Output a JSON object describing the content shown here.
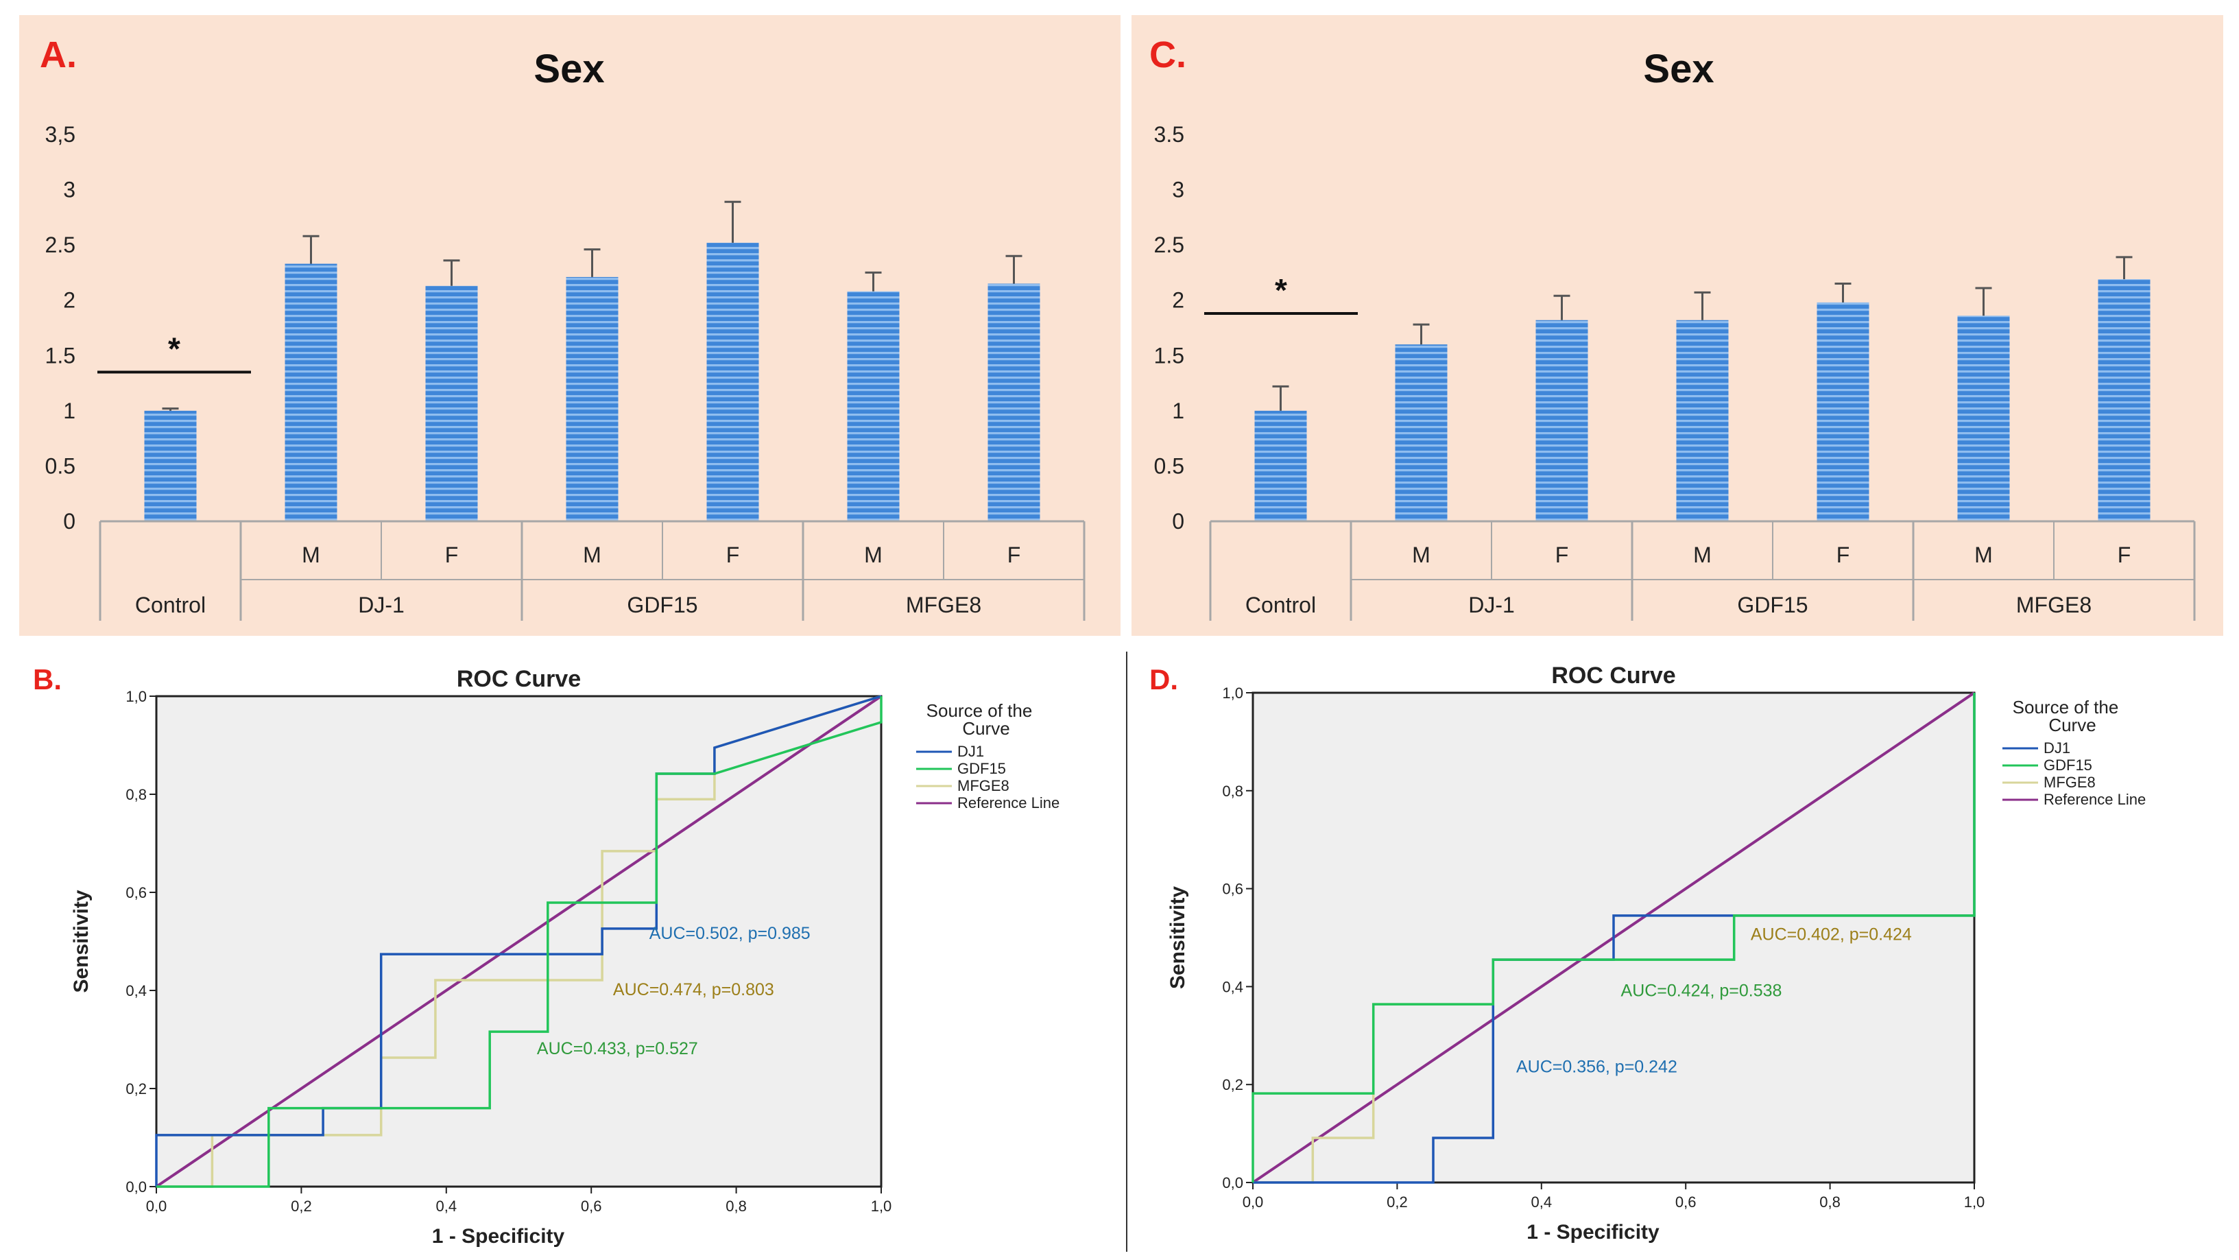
{
  "panels": {
    "a": {
      "label": "A.",
      "label_color": "#e8231c"
    },
    "b": {
      "label": "B.",
      "label_color": "#e8231c"
    },
    "c": {
      "label": "C.",
      "label_color": "#e8231c"
    },
    "d": {
      "label": "D.",
      "label_color": "#e8231c"
    }
  },
  "colors": {
    "panel_bg": "#fbe3d3",
    "bar_fill": "#3f86d8",
    "bar_stripe": "#8fbdef",
    "roc_plot_bg": "#efefef",
    "dj1": "#1f57b5",
    "gdf15": "#22c55a",
    "mfge8": "#d8d69b",
    "reference": "#8b2f8a"
  },
  "chart_data": [
    {
      "id": "A",
      "type": "bar",
      "title": "Sex",
      "ylim": [
        0,
        3.5
      ],
      "y_ticks": [
        "0",
        "0.5",
        "1",
        "1.5",
        "2",
        "2.5",
        "3",
        "3,5"
      ],
      "sub_labels": [
        "",
        "M",
        "F",
        "M",
        "F",
        "M",
        "F"
      ],
      "groups": [
        "Control",
        "DJ-1",
        "GDF15",
        "MFGE8"
      ],
      "values": [
        1.0,
        2.33,
        2.13,
        2.21,
        2.52,
        2.08,
        2.15
      ],
      "errors": [
        0.02,
        0.25,
        0.23,
        0.25,
        0.37,
        0.17,
        0.25
      ],
      "significance": {
        "symbol": "*",
        "level": 1.35
      }
    },
    {
      "id": "C",
      "type": "bar",
      "title": "Sex",
      "ylim": [
        0,
        3.5
      ],
      "y_ticks": [
        "0",
        "0.5",
        "1",
        "1.5",
        "2",
        "2.5",
        "3",
        "3.5"
      ],
      "sub_labels": [
        "",
        "M",
        "F",
        "M",
        "F",
        "M",
        "F"
      ],
      "groups": [
        "Control",
        "DJ-1",
        "GDF15",
        "MFGE8"
      ],
      "values": [
        1.0,
        1.6,
        1.82,
        1.82,
        1.98,
        1.86,
        2.19
      ],
      "errors": [
        0.22,
        0.18,
        0.22,
        0.25,
        0.17,
        0.25,
        0.2
      ],
      "significance": {
        "symbol": "*",
        "level": 1.88
      }
    },
    {
      "id": "B",
      "type": "line",
      "title": "ROC Curve",
      "xlabel": "1 - Specificity",
      "ylabel": "Sensitivity",
      "xlim": [
        0,
        1
      ],
      "ylim": [
        0,
        1
      ],
      "ticks": [
        "0,0",
        "0,2",
        "0,4",
        "0,6",
        "0,8",
        "1,0"
      ],
      "legend_title": "Source of the Curve",
      "series": [
        {
          "name": "DJ1",
          "color_key": "dj1",
          "auc_text": "AUC=0.502, p=0.985",
          "auc_at": [
            0.68,
            0.505
          ],
          "points": [
            [
              0,
              0
            ],
            [
              0,
              0.105
            ],
            [
              0.23,
              0.105
            ],
            [
              0.23,
              0.16
            ],
            [
              0.31,
              0.16
            ],
            [
              0.31,
              0.265
            ],
            [
              0.31,
              0.474
            ],
            [
              0.615,
              0.474
            ],
            [
              0.615,
              0.526
            ],
            [
              0.69,
              0.526
            ],
            [
              0.69,
              0.684
            ],
            [
              0.69,
              0.842
            ],
            [
              0.77,
              0.842
            ],
            [
              0.77,
              0.895
            ],
            [
              1,
              1
            ]
          ]
        },
        {
          "name": "GDF15",
          "color_key": "gdf15",
          "auc_text": "AUC=0.433, p=0.527",
          "auc_at": [
            0.525,
            0.27
          ],
          "points": [
            [
              0,
              0
            ],
            [
              0.155,
              0
            ],
            [
              0.155,
              0.16
            ],
            [
              0.46,
              0.16
            ],
            [
              0.46,
              0.316
            ],
            [
              0.54,
              0.316
            ],
            [
              0.54,
              0.579
            ],
            [
              0.69,
              0.579
            ],
            [
              0.69,
              0.842
            ],
            [
              0.77,
              0.842
            ],
            [
              1,
              0.947
            ],
            [
              1,
              1
            ]
          ]
        },
        {
          "name": "MFGE8",
          "color_key": "mfge8",
          "auc_text": "AUC=0.474, p=0.803",
          "auc_at": [
            0.63,
            0.39
          ],
          "points": [
            [
              0,
              0
            ],
            [
              0.077,
              0
            ],
            [
              0.077,
              0.105
            ],
            [
              0.31,
              0.105
            ],
            [
              0.31,
              0.263
            ],
            [
              0.385,
              0.263
            ],
            [
              0.385,
              0.421
            ],
            [
              0.615,
              0.421
            ],
            [
              0.615,
              0.684
            ],
            [
              0.69,
              0.684
            ],
            [
              0.69,
              0.79
            ],
            [
              0.77,
              0.79
            ],
            [
              0.77,
              0.895
            ],
            [
              1,
              1
            ]
          ]
        },
        {
          "name": "Reference Line",
          "color_key": "reference",
          "points": [
            [
              0,
              0
            ],
            [
              1,
              1
            ]
          ]
        }
      ]
    },
    {
      "id": "D",
      "type": "line",
      "title": "ROC Curve",
      "xlabel": "1 - Specificity",
      "ylabel": "Sensitivity",
      "xlim": [
        0,
        1
      ],
      "ylim": [
        0,
        1
      ],
      "ticks": [
        "0,0",
        "0,2",
        "0,4",
        "0,6",
        "0,8",
        "1,0"
      ],
      "legend_title": "Source of the Curve",
      "series": [
        {
          "name": "DJ1",
          "color_key": "dj1",
          "auc_text": "AUC=0.356, p=0.242",
          "auc_at": [
            0.365,
            0.225
          ],
          "points": [
            [
              0,
              0
            ],
            [
              0.25,
              0
            ],
            [
              0.25,
              0.091
            ],
            [
              0.333,
              0.091
            ],
            [
              0.333,
              0.364
            ],
            [
              0.333,
              0.455
            ],
            [
              0.5,
              0.455
            ],
            [
              0.5,
              0.545
            ],
            [
              0.667,
              0.545
            ],
            [
              1,
              0.545
            ],
            [
              1,
              1
            ]
          ]
        },
        {
          "name": "GDF15",
          "color_key": "gdf15",
          "auc_text": "AUC=0.424, p=0.538",
          "auc_at": [
            0.51,
            0.38
          ],
          "points": [
            [
              0,
              0
            ],
            [
              0,
              0.182
            ],
            [
              0.167,
              0.182
            ],
            [
              0.167,
              0.364
            ],
            [
              0.333,
              0.364
            ],
            [
              0.333,
              0.455
            ],
            [
              0.667,
              0.455
            ],
            [
              0.667,
              0.545
            ],
            [
              1,
              0.545
            ],
            [
              1,
              1
            ]
          ]
        },
        {
          "name": "MFGE8",
          "color_key": "mfge8",
          "auc_text": "AUC=0.402, p=0.424",
          "auc_at": [
            0.69,
            0.495
          ],
          "points": [
            [
              0,
              0
            ],
            [
              0.083,
              0
            ],
            [
              0.083,
              0.091
            ],
            [
              0.167,
              0.091
            ],
            [
              0.167,
              0.364
            ],
            [
              0.333,
              0.364
            ],
            [
              0.333,
              0.455
            ],
            [
              0.667,
              0.455
            ],
            [
              0.667,
              0.545
            ],
            [
              1,
              0.545
            ],
            [
              1,
              1
            ]
          ]
        },
        {
          "name": "Reference Line",
          "color_key": "reference",
          "points": [
            [
              0,
              0
            ],
            [
              1,
              1
            ]
          ]
        }
      ]
    }
  ]
}
